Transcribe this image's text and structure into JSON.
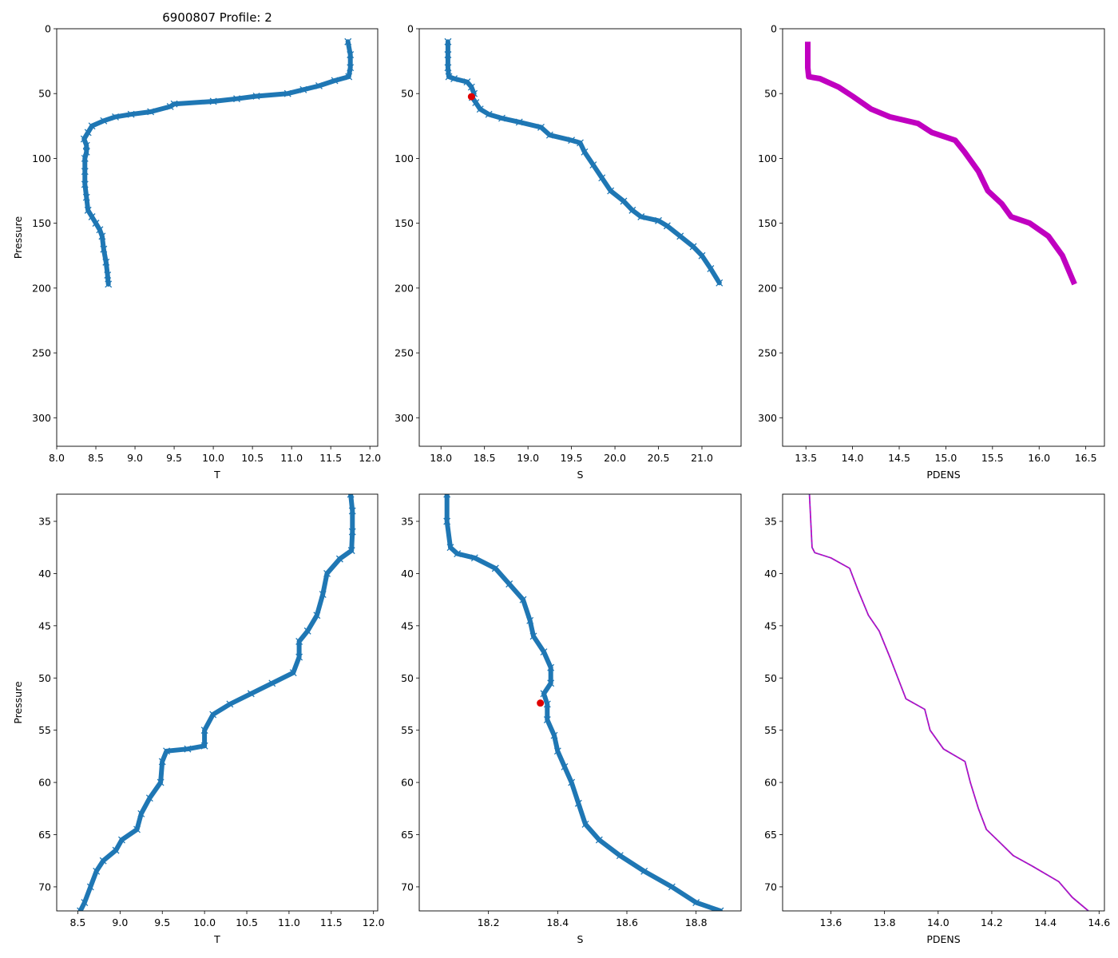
{
  "figure_title": "6900807 Profile: 2",
  "colors": {
    "series": "#1f77b4",
    "pdens": "#c000c0",
    "marker": "#e00000",
    "frame": "#000000"
  },
  "chart_data": [
    {
      "id": "t-full",
      "type": "line",
      "marker": "x",
      "variable": "T",
      "xlabel": "T",
      "ylabel": "Pressure",
      "xlim": [
        8.0,
        12.1
      ],
      "ylim": [
        322,
        0
      ],
      "y_inverted": true,
      "xticks": [
        8.0,
        8.5,
        9.0,
        9.5,
        10.0,
        10.5,
        11.0,
        11.5,
        12.0
      ],
      "yticks": [
        0,
        50,
        100,
        150,
        200,
        250,
        300
      ],
      "series": [
        {
          "name": "T",
          "points": [
            [
              11.72,
              10
            ],
            [
              11.75,
              20
            ],
            [
              11.75,
              30
            ],
            [
              11.73,
              37
            ],
            [
              11.55,
              40
            ],
            [
              11.35,
              44
            ],
            [
              11.15,
              47
            ],
            [
              10.95,
              50
            ],
            [
              10.55,
              52
            ],
            [
              10.3,
              54
            ],
            [
              10.0,
              56
            ],
            [
              9.5,
              58
            ],
            [
              9.45,
              60
            ],
            [
              9.2,
              64
            ],
            [
              8.95,
              66
            ],
            [
              8.75,
              68
            ],
            [
              8.6,
              71
            ],
            [
              8.45,
              75
            ],
            [
              8.4,
              80
            ],
            [
              8.35,
              85
            ],
            [
              8.38,
              90
            ],
            [
              8.38,
              95
            ],
            [
              8.36,
              100
            ],
            [
              8.36,
              110
            ],
            [
              8.36,
              120
            ],
            [
              8.38,
              130
            ],
            [
              8.4,
              140
            ],
            [
              8.45,
              145
            ],
            [
              8.5,
              150
            ],
            [
              8.55,
              155
            ],
            [
              8.58,
              160
            ],
            [
              8.6,
              170
            ],
            [
              8.63,
              180
            ],
            [
              8.65,
              190
            ],
            [
              8.66,
              197
            ]
          ]
        }
      ]
    },
    {
      "id": "s-full",
      "type": "line",
      "marker": "x",
      "variable": "S",
      "xlabel": "S",
      "ylabel": "",
      "xlim": [
        17.75,
        21.45
      ],
      "ylim": [
        322,
        0
      ],
      "y_inverted": true,
      "xticks": [
        18.0,
        18.5,
        19.0,
        19.5,
        20.0,
        20.5,
        21.0
      ],
      "yticks": [
        0,
        50,
        100,
        150,
        200,
        250,
        300
      ],
      "series": [
        {
          "name": "S",
          "points": [
            [
              18.08,
              10
            ],
            [
              18.08,
              20
            ],
            [
              18.08,
              30
            ],
            [
              18.09,
              37
            ],
            [
              18.15,
              38.5
            ],
            [
              18.3,
              41
            ],
            [
              18.35,
              45
            ],
            [
              18.38,
              50
            ],
            [
              18.36,
              53
            ],
            [
              18.4,
              57
            ],
            [
              18.45,
              62
            ],
            [
              18.55,
              66
            ],
            [
              18.7,
              69
            ],
            [
              18.9,
              72
            ],
            [
              19.15,
              76
            ],
            [
              19.25,
              82
            ],
            [
              19.5,
              86
            ],
            [
              19.6,
              88
            ],
            [
              19.65,
              95
            ],
            [
              19.75,
              105
            ],
            [
              19.85,
              115
            ],
            [
              19.95,
              125
            ],
            [
              20.1,
              133
            ],
            [
              20.2,
              140
            ],
            [
              20.3,
              145
            ],
            [
              20.5,
              148
            ],
            [
              20.6,
              152
            ],
            [
              20.75,
              160
            ],
            [
              20.9,
              168
            ],
            [
              21.0,
              175
            ],
            [
              21.1,
              185
            ],
            [
              21.2,
              196
            ]
          ]
        }
      ],
      "highlight": {
        "x": 18.35,
        "y": 52.4
      }
    },
    {
      "id": "pdens-full",
      "type": "line",
      "marker": "none",
      "variable": "PDENS",
      "xlabel": "PDENS",
      "ylabel": "",
      "xlim": [
        13.25,
        16.7
      ],
      "ylim": [
        322,
        0
      ],
      "y_inverted": true,
      "xticks": [
        13.5,
        14.0,
        14.5,
        15.0,
        15.5,
        16.0,
        16.5
      ],
      "yticks": [
        0,
        50,
        100,
        150,
        200,
        250,
        300
      ],
      "series": [
        {
          "name": "PDENS",
          "points": [
            [
              13.52,
              10
            ],
            [
              13.52,
              20
            ],
            [
              13.52,
              30
            ],
            [
              13.53,
              37
            ],
            [
              13.65,
              38.5
            ],
            [
              13.85,
              45
            ],
            [
              14.0,
              52
            ],
            [
              14.2,
              62
            ],
            [
              14.4,
              68
            ],
            [
              14.7,
              73
            ],
            [
              14.85,
              80
            ],
            [
              15.1,
              86
            ],
            [
              15.2,
              95
            ],
            [
              15.35,
              110
            ],
            [
              15.45,
              125
            ],
            [
              15.6,
              135
            ],
            [
              15.7,
              145
            ],
            [
              15.9,
              150
            ],
            [
              16.1,
              160
            ],
            [
              16.25,
              175
            ],
            [
              16.38,
              197
            ]
          ]
        }
      ]
    },
    {
      "id": "t-zoom",
      "type": "line",
      "marker": "x",
      "variable": "T",
      "xlabel": "T",
      "ylabel": "Pressure",
      "xlim": [
        8.25,
        12.05
      ],
      "ylim": [
        72.3,
        32.4
      ],
      "y_inverted": true,
      "xticks": [
        8.5,
        9.0,
        9.5,
        10.0,
        10.5,
        11.0,
        11.5,
        12.0
      ],
      "yticks": [
        35,
        40,
        45,
        50,
        55,
        60,
        65,
        70
      ],
      "series": [
        {
          "name": "T",
          "points": [
            [
              11.73,
              32.4
            ],
            [
              11.75,
              34
            ],
            [
              11.75,
              36
            ],
            [
              11.74,
              37.8
            ],
            [
              11.6,
              38.6
            ],
            [
              11.45,
              40
            ],
            [
              11.4,
              42
            ],
            [
              11.33,
              44
            ],
            [
              11.22,
              45.5
            ],
            [
              11.12,
              46.5
            ],
            [
              11.12,
              48
            ],
            [
              11.05,
              49.5
            ],
            [
              10.8,
              50.5
            ],
            [
              10.55,
              51.5
            ],
            [
              10.3,
              52.5
            ],
            [
              10.1,
              53.5
            ],
            [
              10.0,
              55
            ],
            [
              10.0,
              56.5
            ],
            [
              9.8,
              56.8
            ],
            [
              9.55,
              57
            ],
            [
              9.5,
              58
            ],
            [
              9.48,
              60
            ],
            [
              9.35,
              61.5
            ],
            [
              9.25,
              63
            ],
            [
              9.2,
              64.5
            ],
            [
              9.02,
              65.5
            ],
            [
              8.95,
              66.5
            ],
            [
              8.8,
              67.5
            ],
            [
              8.72,
              68.5
            ],
            [
              8.65,
              70
            ],
            [
              8.58,
              71.5
            ],
            [
              8.53,
              72.3
            ]
          ]
        }
      ]
    },
    {
      "id": "s-zoom",
      "type": "line",
      "marker": "x",
      "variable": "S",
      "xlabel": "S",
      "ylabel": "",
      "xlim": [
        18.0,
        18.93
      ],
      "ylim": [
        72.3,
        32.4
      ],
      "y_inverted": true,
      "xticks": [
        18.2,
        18.4,
        18.6,
        18.8
      ],
      "yticks": [
        35,
        40,
        45,
        50,
        55,
        60,
        65,
        70
      ],
      "series": [
        {
          "name": "S",
          "points": [
            [
              18.08,
              32.4
            ],
            [
              18.08,
              35
            ],
            [
              18.09,
              37.5
            ],
            [
              18.11,
              38.1
            ],
            [
              18.16,
              38.5
            ],
            [
              18.22,
              39.5
            ],
            [
              18.26,
              41
            ],
            [
              18.3,
              42.5
            ],
            [
              18.32,
              44.5
            ],
            [
              18.33,
              46
            ],
            [
              18.36,
              47.5
            ],
            [
              18.38,
              49
            ],
            [
              18.38,
              50.5
            ],
            [
              18.36,
              51.5
            ],
            [
              18.37,
              52.5
            ],
            [
              18.37,
              54
            ],
            [
              18.39,
              55.5
            ],
            [
              18.4,
              57
            ],
            [
              18.42,
              58.5
            ],
            [
              18.44,
              60
            ],
            [
              18.46,
              62
            ],
            [
              18.48,
              64
            ],
            [
              18.52,
              65.5
            ],
            [
              18.58,
              67
            ],
            [
              18.65,
              68.5
            ],
            [
              18.73,
              70
            ],
            [
              18.8,
              71.5
            ],
            [
              18.87,
              72.3
            ]
          ]
        }
      ],
      "highlight": {
        "x": 18.35,
        "y": 52.4
      }
    },
    {
      "id": "pdens-zoom",
      "type": "line",
      "marker": "none",
      "variable": "PDENS",
      "xlabel": "PDENS",
      "ylabel": "",
      "xlim": [
        13.42,
        14.62
      ],
      "ylim": [
        72.3,
        32.4
      ],
      "y_inverted": true,
      "xticks": [
        13.6,
        13.8,
        14.0,
        14.2,
        14.4,
        14.6
      ],
      "yticks": [
        35,
        40,
        45,
        50,
        55,
        60,
        65,
        70
      ],
      "series": [
        {
          "name": "PDENS",
          "points": [
            [
              13.52,
              32.4
            ],
            [
              13.53,
              37.5
            ],
            [
              13.54,
              38
            ],
            [
              13.6,
              38.5
            ],
            [
              13.67,
              39.5
            ],
            [
              13.7,
              41.5
            ],
            [
              13.74,
              44
            ],
            [
              13.78,
              45.5
            ],
            [
              13.82,
              48
            ],
            [
              13.85,
              50
            ],
            [
              13.88,
              52
            ],
            [
              13.95,
              53
            ],
            [
              13.97,
              55
            ],
            [
              14.02,
              56.8
            ],
            [
              14.1,
              58
            ],
            [
              14.12,
              60
            ],
            [
              14.15,
              62.5
            ],
            [
              14.18,
              64.5
            ],
            [
              14.22,
              65.5
            ],
            [
              14.28,
              67
            ],
            [
              14.35,
              68
            ],
            [
              14.45,
              69.5
            ],
            [
              14.5,
              71
            ],
            [
              14.56,
              72.3
            ]
          ]
        }
      ]
    }
  ]
}
